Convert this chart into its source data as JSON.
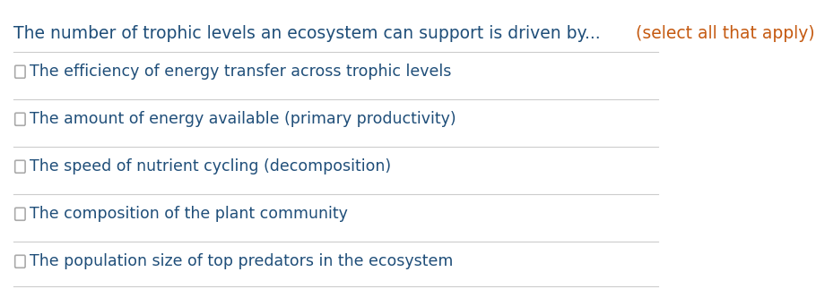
{
  "title_parts": [
    {
      "text": "The number of trophic levels an ecosystem can support is driven by... ",
      "color": "#1f4e79"
    },
    {
      "text": "(select all that apply)",
      "color": "#c55a11"
    }
  ],
  "options": [
    {
      "parts": [
        {
          "text": "The efficiency of energy transfer across trophic levels",
          "color": "#1f4e79"
        }
      ]
    },
    {
      "parts": [
        {
          "text": "The amount of energy available (primary productivity)",
          "color": "#1f4e79"
        }
      ]
    },
    {
      "parts": [
        {
          "text": "The speed of nutrient cycling (decomposition)",
          "color": "#1f4e79"
        }
      ]
    },
    {
      "parts": [
        {
          "text": "The composition of the plant community",
          "color": "#1f4e79"
        }
      ]
    },
    {
      "parts": [
        {
          "text": "The population size of top predators in the ecosystem",
          "color": "#1f4e79"
        }
      ]
    }
  ],
  "background_color": "#ffffff",
  "divider_color": "#cccccc",
  "checkbox_color": "#aaaaaa",
  "title_fontsize": 13.5,
  "option_fontsize": 12.5
}
